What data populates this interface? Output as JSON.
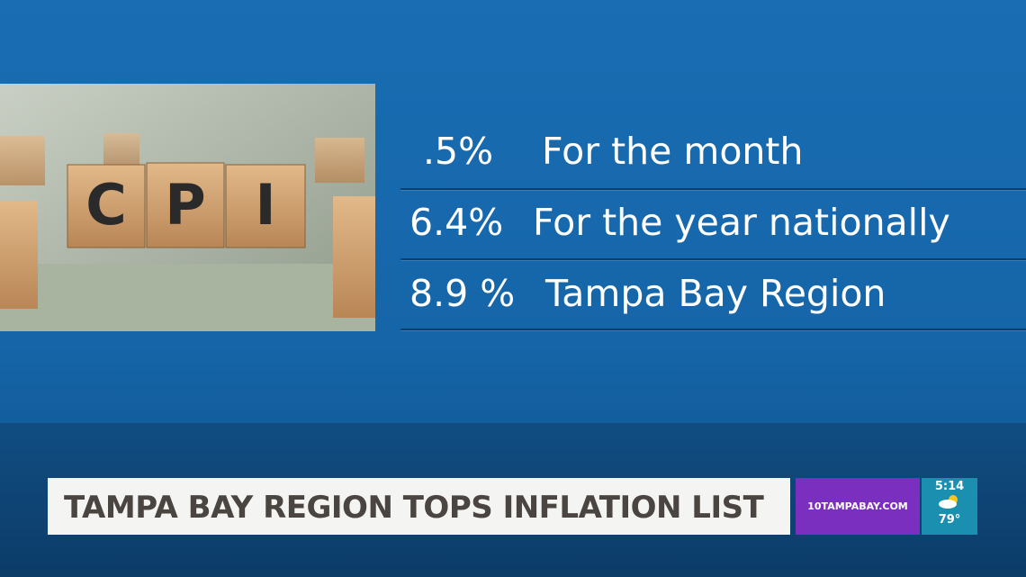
{
  "graphic": {
    "image": {
      "blocks": [
        "C",
        "P",
        "I"
      ]
    },
    "rows": [
      {
        "value": ".5%",
        "label": "For the month"
      },
      {
        "value": "6.4%",
        "label": "For the year nationally"
      },
      {
        "value": "8.9 %",
        "label": "Tampa Bay Region"
      }
    ]
  },
  "lower_third": {
    "headline": "TAMPA BAY REGION TOPS INFLATION LIST",
    "site": "10TAMPABAY.COM",
    "time": "5:14",
    "temperature": "79°"
  }
}
